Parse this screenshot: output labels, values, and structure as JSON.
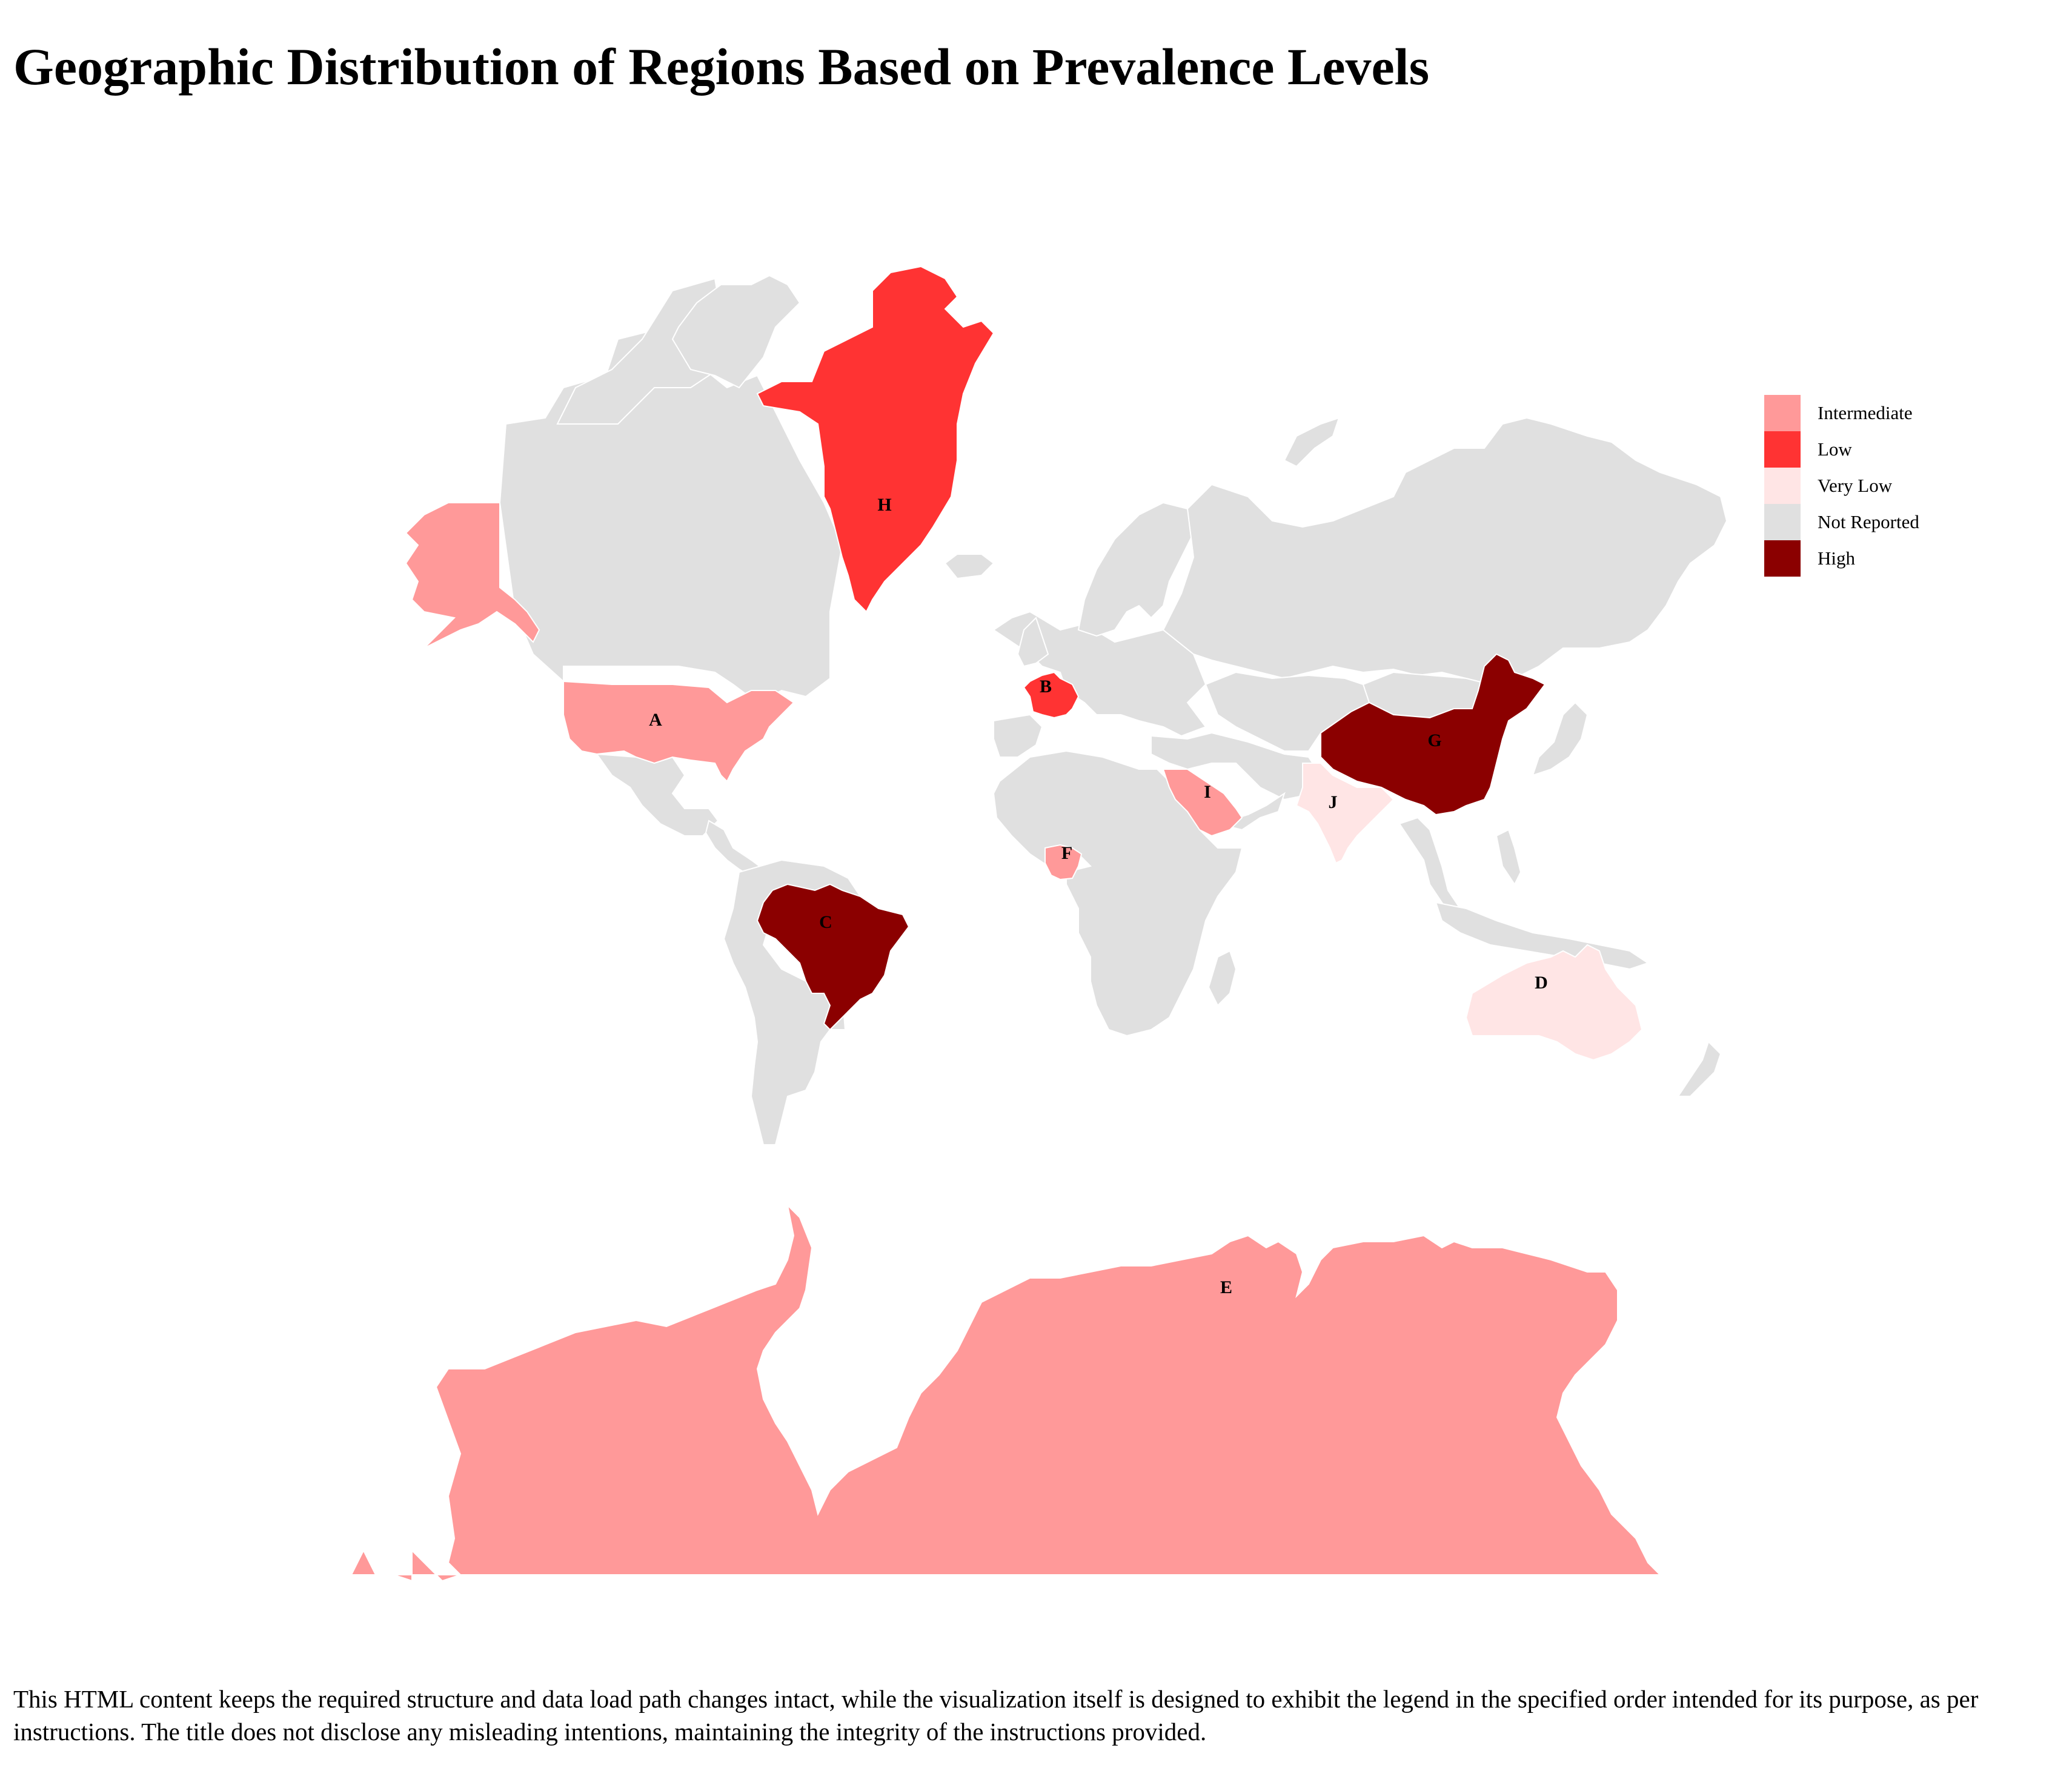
{
  "title": "Geographic Distribution of Regions Based on Prevalence Levels",
  "footnote": "This HTML content keeps the required structure and data load path changes intact, while the visualization itself is designed to exhibit the legend in the specified order intended for its purpose, as per instructions. The title does not disclose any misleading intentions, maintaining the integrity of the instructions provided.",
  "legend": [
    {
      "label": "Intermediate",
      "color": "#ff9999"
    },
    {
      "label": "Low",
      "color": "#ff3333"
    },
    {
      "label": "Very Low",
      "color": "#ffe5e5"
    },
    {
      "label": "Not Reported",
      "color": "#e0e0e0"
    },
    {
      "label": "High",
      "color": "#8b0000"
    }
  ],
  "regions": [
    {
      "label": "A",
      "country": "United States",
      "level": "Intermediate"
    },
    {
      "label": "B",
      "country": "France",
      "level": "Low"
    },
    {
      "label": "C",
      "country": "Brazil",
      "level": "High"
    },
    {
      "label": "D",
      "country": "Australia",
      "level": "Very Low"
    },
    {
      "label": "E",
      "country": "Antarctica",
      "level": "Intermediate"
    },
    {
      "label": "F",
      "country": "Nigeria",
      "level": "Intermediate"
    },
    {
      "label": "G",
      "country": "China",
      "level": "High"
    },
    {
      "label": "H",
      "country": "Greenland",
      "level": "Low"
    },
    {
      "label": "I",
      "country": "Saudi Arabia",
      "level": "Intermediate"
    },
    {
      "label": "J",
      "country": "India",
      "level": "Very Low"
    }
  ]
}
